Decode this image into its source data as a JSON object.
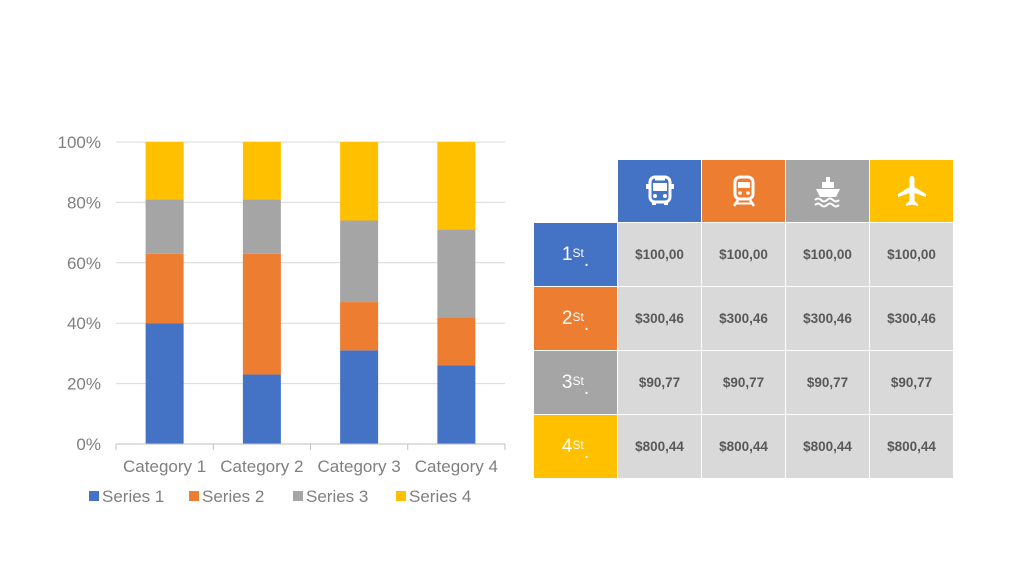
{
  "chart_data": {
    "type": "bar",
    "stacked": "percent",
    "categories": [
      "Category 1",
      "Category 2",
      "Category 3",
      "Category 4"
    ],
    "series": [
      {
        "name": "Series 1",
        "color": "#4472c4",
        "values": [
          40,
          23,
          31,
          26
        ]
      },
      {
        "name": "Series 2",
        "color": "#ed7d31",
        "values": [
          23,
          40,
          16,
          16
        ]
      },
      {
        "name": "Series 3",
        "color": "#a5a5a5",
        "values": [
          18,
          18,
          27,
          29
        ]
      },
      {
        "name": "Series 4",
        "color": "#ffc000",
        "values": [
          19,
          19,
          26,
          29
        ]
      }
    ],
    "ylim": [
      0,
      100
    ],
    "yticks": [
      "0%",
      "20%",
      "40%",
      "60%",
      "80%",
      "100%"
    ],
    "grid": true,
    "legend_position": "bottom",
    "title": "",
    "xlabel": "",
    "ylabel": ""
  },
  "table": {
    "columns": [
      {
        "icon": "bus-icon",
        "color": "#4472c4"
      },
      {
        "icon": "train-icon",
        "color": "#ed7d31"
      },
      {
        "icon": "ship-icon",
        "color": "#a5a5a5"
      },
      {
        "icon": "airplane-icon",
        "color": "#ffc000"
      }
    ],
    "rows": [
      {
        "num": "1",
        "sup": "St",
        "dot": ".",
        "color": "#4472c4",
        "values": [
          "$100,00",
          "$100,00",
          "$100,00",
          "$100,00"
        ]
      },
      {
        "num": "2",
        "sup": "St",
        "dot": ".",
        "color": "#ed7d31",
        "values": [
          "$300,46",
          "$300,46",
          "$300,46",
          "$300,46"
        ]
      },
      {
        "num": "3",
        "sup": "St",
        "dot": ".",
        "color": "#a5a5a5",
        "values": [
          "$90,77",
          "$90,77",
          "$90,77",
          "$90,77"
        ]
      },
      {
        "num": "4",
        "sup": "St",
        "dot": ".",
        "color": "#ffc000",
        "values": [
          "$800,44",
          "$800,44",
          "$800,44",
          "$800,44"
        ]
      }
    ]
  }
}
